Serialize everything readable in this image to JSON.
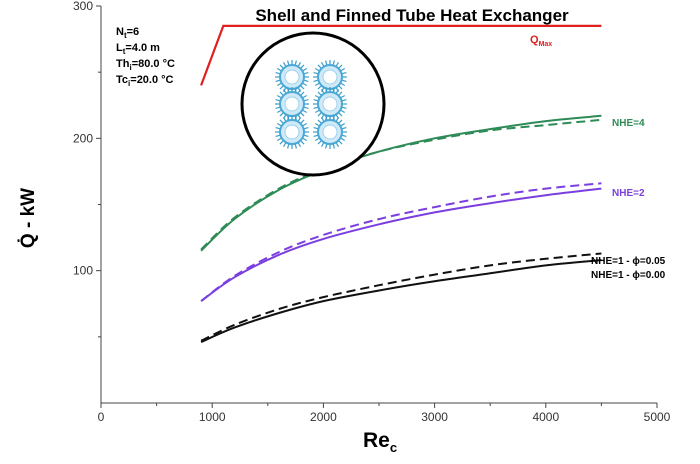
{
  "chart_data": {
    "type": "line",
    "title": "Shell and Finned Tube Heat Exchanger",
    "xlabel": "Re",
    "xlabel_sub": "c",
    "ylabel": "Q̇ - kW",
    "xlim": [
      0,
      5000
    ],
    "ylim": [
      0,
      300
    ],
    "x_ticks": [
      0,
      1000,
      2000,
      3000,
      4000,
      5000
    ],
    "y_ticks": [
      100,
      200,
      300
    ],
    "grid": false,
    "parameters": [
      {
        "name": "N",
        "sub": "t",
        "value": "=6"
      },
      {
        "name": "L",
        "sub": "t",
        "value": "=4.0 m"
      },
      {
        "name": "Th",
        "sub": "i",
        "value": "=80.0 °C"
      },
      {
        "name": "Tc",
        "sub": "i",
        "value": "=20.0 °C"
      }
    ],
    "qmax": {
      "label": "Q",
      "label_sub": "Max",
      "color": "#e0201e",
      "x": [
        900,
        1100,
        4500
      ],
      "y": [
        240,
        285,
        285
      ]
    },
    "series": [
      {
        "label": "NHE=4",
        "color": "#2e8b57",
        "style": "solid",
        "x": [
          900,
          1200,
          1600,
          2000,
          2500,
          3000,
          3500,
          4000,
          4500
        ],
        "y": [
          115,
          139,
          161,
          176,
          190,
          200,
          207,
          213,
          217
        ]
      },
      {
        "color": "#2e8b57",
        "style": "dashed",
        "x": [
          900,
          1200,
          1600,
          2000,
          2500,
          3000,
          3500,
          4000,
          4500
        ],
        "y": [
          116,
          140,
          162,
          177,
          190,
          199,
          206,
          210,
          214
        ]
      },
      {
        "label": "NHE=2",
        "color": "#7b3fe0",
        "style": "solid",
        "x": [
          900,
          1200,
          1600,
          2000,
          2500,
          3000,
          3500,
          4000,
          4500
        ],
        "y": [
          77,
          95,
          112,
          124,
          135,
          144,
          151,
          157,
          162
        ]
      },
      {
        "color": "#7b3fe0",
        "style": "dashed",
        "x": [
          900,
          1200,
          1600,
          2000,
          2500,
          3000,
          3500,
          4000,
          4500
        ],
        "y": [
          77,
          96,
          114,
          127,
          139,
          148,
          156,
          162,
          166
        ]
      },
      {
        "label": "NHE=1 - ϕ=0.05",
        "color": "#111111",
        "style": "dashed",
        "x": [
          900,
          1200,
          1600,
          2000,
          2500,
          3000,
          3500,
          4000,
          4500
        ],
        "y": [
          47,
          59,
          71,
          80,
          89,
          97,
          104,
          109,
          113
        ]
      },
      {
        "label": "NHE=1 - ϕ=0.00",
        "color": "#111111",
        "style": "solid",
        "x": [
          900,
          1200,
          1600,
          2000,
          2500,
          3000,
          3500,
          4000,
          4500
        ],
        "y": [
          46,
          57,
          68,
          77,
          85,
          92,
          98,
          104,
          108
        ]
      }
    ]
  }
}
